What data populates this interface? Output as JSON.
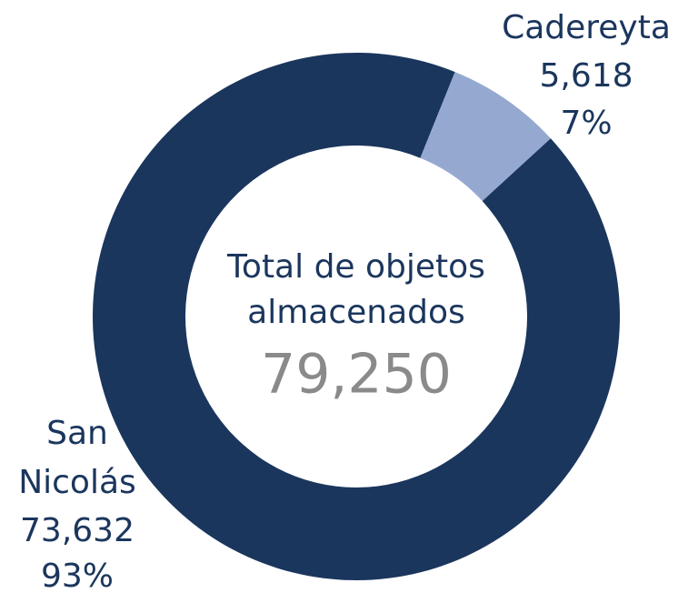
{
  "chart_data": {
    "type": "donut",
    "categories": [
      "Cadereyta",
      "San Nicolás"
    ],
    "values": [
      5618,
      73632
    ],
    "value_labels": [
      "5,618",
      "73,632"
    ],
    "percents": [
      7,
      93
    ],
    "percent_labels": [
      "7%",
      "93%"
    ],
    "colors": [
      "#95a9d0",
      "#1b365d"
    ],
    "center_title": [
      "Total de objetos",
      "almacenados"
    ],
    "total": 79250,
    "total_label": "79,250"
  }
}
